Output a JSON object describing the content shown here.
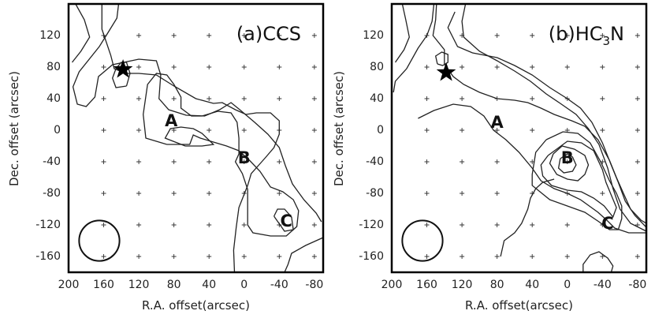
{
  "chart_data": [
    {
      "type": "contour",
      "title": "(a)CCS",
      "title_parts": [
        "(a)CCS"
      ],
      "xlabel": "R.A. offset(arcsec)",
      "ylabel": "Dec. offset (arcsec)",
      "xlim": [
        200,
        -90
      ],
      "ylim": [
        -180,
        160
      ],
      "x_ticks": [
        200,
        160,
        120,
        80,
        40,
        0,
        -40,
        -80
      ],
      "x_tick_labels": [
        "200",
        "160",
        "120",
        "80",
        "40",
        "0",
        "-40",
        "-80"
      ],
      "y_ticks": [
        120,
        80,
        40,
        0,
        -40,
        -80,
        -120,
        -160
      ],
      "y_tick_labels": [
        "120",
        "80",
        "40",
        "0",
        "-40",
        "-80",
        "-120",
        "-160"
      ],
      "star": {
        "x": 138,
        "y": 77
      },
      "beam": {
        "x": 165,
        "y": -140,
        "diameter_arcsec": 46
      },
      "peaks": [
        {
          "label": "A",
          "x": 83,
          "y": 12
        },
        {
          "label": "B",
          "x": 0,
          "y": -35
        },
        {
          "label": "C",
          "x": -48,
          "y": -115
        }
      ],
      "contours": [
        [
          [
            192,
            160
          ],
          [
            182,
            140
          ],
          [
            176,
            118
          ],
          [
            186,
            100
          ],
          [
            196,
            86
          ]
        ],
        [
          [
            143,
            160
          ],
          [
            145,
            142
          ],
          [
            156,
            122
          ],
          [
            165,
            106
          ],
          [
            188,
            74
          ],
          [
            195,
            55
          ],
          [
            190,
            33
          ],
          [
            180,
            30
          ],
          [
            170,
            42
          ],
          [
            166,
            68
          ],
          [
            150,
            83
          ],
          [
            120,
            90
          ],
          [
            100,
            88
          ],
          [
            95,
            70
          ],
          [
            97,
            40
          ],
          [
            86,
            26
          ],
          [
            66,
            19
          ],
          [
            45,
            18
          ],
          [
            28,
            26
          ],
          [
            15,
            35
          ],
          [
            5,
            26
          ],
          [
            -12,
            10
          ],
          [
            -27,
            -5
          ],
          [
            -40,
            -22
          ],
          [
            -47,
            -45
          ],
          [
            -55,
            -68
          ],
          [
            -68,
            -88
          ],
          [
            -82,
            -105
          ],
          [
            -88,
            -116
          ]
        ],
        [
          [
            -90,
            -136
          ],
          [
            -70,
            -146
          ],
          [
            -54,
            -156
          ],
          [
            -50,
            -170
          ],
          [
            -46,
            -180
          ]
        ],
        [
          [
            11,
            -180
          ],
          [
            12,
            -152
          ],
          [
            9,
            -123
          ],
          [
            6,
            -98
          ],
          [
            -4,
            -70
          ],
          [
            -8,
            -55
          ],
          [
            -16,
            -45
          ],
          [
            -24,
            -35
          ],
          [
            -34,
            -22
          ],
          [
            -40,
            -5
          ],
          [
            -40,
            12
          ],
          [
            -30,
            22
          ],
          [
            -14,
            22
          ],
          [
            -2,
            20
          ],
          [
            10,
            26
          ],
          [
            25,
            35
          ],
          [
            35,
            34
          ],
          [
            55,
            40
          ],
          [
            80,
            56
          ],
          [
            100,
            70
          ],
          [
            120,
            72
          ],
          [
            135,
            72
          ],
          [
            148,
            78
          ],
          [
            152,
            95
          ],
          [
            162,
            128
          ],
          [
            162,
            160
          ]
        ],
        [
          [
            88,
            -18
          ],
          [
            112,
            -10
          ],
          [
            115,
            20
          ],
          [
            110,
            58
          ],
          [
            100,
            72
          ],
          [
            88,
            70
          ],
          [
            80,
            58
          ],
          [
            72,
            42
          ],
          [
            72,
            28
          ],
          [
            60,
            18
          ],
          [
            48,
            18
          ],
          [
            30,
            24
          ],
          [
            15,
            22
          ],
          [
            8,
            10
          ],
          [
            6,
            -10
          ],
          [
            6,
            -30
          ],
          [
            10,
            -40
          ],
          [
            2,
            -55
          ],
          [
            -4,
            -75
          ],
          [
            -4,
            -100
          ],
          [
            -4,
            -120
          ],
          [
            -10,
            -130
          ],
          [
            -30,
            -134
          ],
          [
            -48,
            -134
          ],
          [
            -60,
            -122
          ],
          [
            -62,
            -102
          ],
          [
            -56,
            -88
          ],
          [
            -44,
            -78
          ],
          [
            -30,
            -72
          ],
          [
            -18,
            -52
          ],
          [
            -6,
            -38
          ],
          [
            6,
            -26
          ],
          [
            20,
            -20
          ],
          [
            38,
            -14
          ],
          [
            50,
            -10
          ],
          [
            58,
            -6
          ],
          [
            62,
            -18
          ],
          [
            88,
            -18
          ]
        ],
        [
          [
            134,
            56
          ],
          [
            146,
            54
          ],
          [
            150,
            66
          ],
          [
            146,
            78
          ],
          [
            140,
            86
          ],
          [
            134,
            86
          ],
          [
            130,
            72
          ],
          [
            134,
            56
          ]
        ],
        [
          [
            67,
            -20
          ],
          [
            48,
            -20
          ],
          [
            35,
            -18
          ],
          [
            48,
            -4
          ],
          [
            58,
            2
          ],
          [
            72,
            4
          ],
          [
            84,
            2
          ],
          [
            90,
            -10
          ],
          [
            67,
            -20
          ]
        ],
        [
          [
            -34,
            -109
          ],
          [
            -46,
            -128
          ],
          [
            -56,
            -126
          ],
          [
            -54,
            -110
          ],
          [
            -46,
            -100
          ],
          [
            -38,
            -100
          ],
          [
            -34,
            -109
          ]
        ]
      ]
    },
    {
      "type": "contour",
      "title": "(b)HC3N",
      "title_parts": [
        "(b)HC",
        "3",
        "N"
      ],
      "xlabel": "R.A. offset(arcsec)",
      "ylabel": "Dec. offset (arcsec)",
      "xlim": [
        200,
        -90
      ],
      "ylim": [
        -180,
        160
      ],
      "x_ticks": [
        200,
        160,
        120,
        80,
        40,
        0,
        -40,
        -80
      ],
      "x_tick_labels": [
        "200",
        "160",
        "120",
        "80",
        "40",
        "0",
        "-40",
        "-80"
      ],
      "y_ticks": [
        120,
        80,
        40,
        0,
        -40,
        -80,
        -120,
        -160
      ],
      "y_tick_labels": [
        "120",
        "80",
        "40",
        "0",
        "-40",
        "-80",
        "-120",
        "-160"
      ],
      "star": {
        "x": 138,
        "y": 73
      },
      "beam": {
        "x": 165,
        "y": -140,
        "diameter_arcsec": 46
      },
      "peaks": [
        {
          "label": "A",
          "x": 80,
          "y": 10
        },
        {
          "label": "B",
          "x": 0,
          "y": -35
        },
        {
          "label": "C",
          "x": -46,
          "y": -118
        }
      ],
      "contours": [
        [
          [
            188,
            160
          ],
          [
            184,
            140
          ],
          [
            180,
            118
          ],
          [
            186,
            102
          ],
          [
            196,
            86
          ]
        ],
        [
          [
            152,
            160
          ],
          [
            154,
            138
          ],
          [
            160,
            120
          ],
          [
            170,
            104
          ],
          [
            183,
            78
          ],
          [
            196,
            62
          ],
          [
            198,
            48
          ]
        ],
        [
          [
            149,
            160
          ],
          [
            150,
            140
          ],
          [
            153,
            120
          ],
          [
            140,
            102
          ],
          [
            140,
            84
          ],
          [
            130,
            68
          ],
          [
            118,
            58
          ],
          [
            100,
            48
          ],
          [
            80,
            40
          ],
          [
            60,
            38
          ],
          [
            45,
            35
          ],
          [
            30,
            28
          ],
          [
            15,
            20
          ],
          [
            -5,
            12
          ],
          [
            -20,
            5
          ],
          [
            -35,
            -12
          ],
          [
            -48,
            -38
          ],
          [
            -56,
            -60
          ],
          [
            -64,
            -80
          ],
          [
            -72,
            -100
          ],
          [
            -84,
            -114
          ],
          [
            -90,
            -118
          ]
        ],
        [
          [
            128,
            150
          ],
          [
            136,
            130
          ],
          [
            125,
            106
          ],
          [
            108,
            98
          ],
          [
            80,
            92
          ],
          [
            60,
            82
          ],
          [
            40,
            70
          ],
          [
            20,
            54
          ],
          [
            0,
            40
          ],
          [
            -15,
            28
          ],
          [
            -28,
            10
          ],
          [
            -40,
            -16
          ],
          [
            -50,
            -44
          ],
          [
            -58,
            -66
          ],
          [
            -66,
            -90
          ],
          [
            -77,
            -108
          ],
          [
            -90,
            -123
          ]
        ],
        [
          [
            116,
            160
          ],
          [
            120,
            138
          ],
          [
            118,
            118
          ],
          [
            100,
            100
          ],
          [
            80,
            88
          ],
          [
            60,
            75
          ],
          [
            42,
            62
          ],
          [
            24,
            46
          ],
          [
            8,
            34
          ],
          [
            -10,
            20
          ],
          [
            -24,
            2
          ],
          [
            -36,
            -18
          ],
          [
            -46,
            -48
          ],
          [
            -52,
            -74
          ],
          [
            -60,
            -100
          ],
          [
            -72,
            -118
          ],
          [
            -90,
            -128
          ]
        ],
        [
          [
            170,
            15
          ],
          [
            152,
            25
          ],
          [
            130,
            33
          ],
          [
            110,
            30
          ],
          [
            95,
            18
          ],
          [
            84,
            0
          ],
          [
            70,
            -12
          ],
          [
            55,
            -28
          ],
          [
            40,
            -48
          ],
          [
            30,
            -64
          ],
          [
            15,
            -74
          ],
          [
            0,
            -80
          ],
          [
            -15,
            -88
          ],
          [
            -25,
            -96
          ],
          [
            -35,
            -104
          ],
          [
            -45,
            -114
          ],
          [
            -54,
            -124
          ],
          [
            -70,
            -130
          ],
          [
            -90,
            -130
          ]
        ],
        [
          [
            76,
            -160
          ],
          [
            72,
            -140
          ],
          [
            60,
            -130
          ],
          [
            52,
            -118
          ],
          [
            45,
            -100
          ],
          [
            42,
            -86
          ],
          [
            36,
            -74
          ],
          [
            28,
            -66
          ],
          [
            15,
            -62
          ]
        ],
        [
          [
            24,
            -12
          ],
          [
            36,
            -28
          ],
          [
            40,
            -56
          ],
          [
            40,
            -70
          ],
          [
            20,
            -88
          ],
          [
            0,
            -96
          ],
          [
            -20,
            -104
          ],
          [
            -36,
            -116
          ],
          [
            -48,
            -126
          ],
          [
            -58,
            -126
          ],
          [
            -62,
            -112
          ],
          [
            -62,
            -96
          ],
          [
            -56,
            -80
          ],
          [
            -48,
            -64
          ],
          [
            -38,
            -40
          ],
          [
            -26,
            -16
          ],
          [
            -12,
            -4
          ],
          [
            5,
            -2
          ],
          [
            24,
            -12
          ]
        ],
        [
          [
            22,
            -32
          ],
          [
            30,
            -44
          ],
          [
            28,
            -58
          ],
          [
            18,
            -70
          ],
          [
            0,
            -76
          ],
          [
            -16,
            -78
          ],
          [
            -30,
            -86
          ],
          [
            -42,
            -96
          ],
          [
            -52,
            -110
          ],
          [
            -56,
            -98
          ],
          [
            -50,
            -82
          ],
          [
            -44,
            -66
          ],
          [
            -40,
            -50
          ],
          [
            -30,
            -26
          ],
          [
            -16,
            -16
          ],
          [
            0,
            -14
          ],
          [
            22,
            -32
          ]
        ],
        [
          [
            16,
            -30
          ],
          [
            20,
            -42
          ],
          [
            12,
            -56
          ],
          [
            0,
            -62
          ],
          [
            -12,
            -64
          ],
          [
            -20,
            -56
          ],
          [
            -24,
            -44
          ],
          [
            -20,
            -32
          ],
          [
            -8,
            -24
          ],
          [
            6,
            -20
          ],
          [
            16,
            -30
          ]
        ],
        [
          [
            8,
            -36
          ],
          [
            10,
            -48
          ],
          [
            4,
            -54
          ],
          [
            -6,
            -52
          ],
          [
            -10,
            -44
          ],
          [
            -6,
            -34
          ],
          [
            0,
            -30
          ],
          [
            8,
            -36
          ]
        ],
        [
          [
            148,
            84
          ],
          [
            150,
            94
          ],
          [
            143,
            99
          ],
          [
            136,
            96
          ],
          [
            136,
            86
          ],
          [
            142,
            82
          ],
          [
            148,
            84
          ]
        ],
        [
          [
            -18,
            -180
          ],
          [
            -18,
            -170
          ],
          [
            -26,
            -158
          ],
          [
            -36,
            -154
          ],
          [
            -46,
            -162
          ],
          [
            -52,
            -172
          ],
          [
            -50,
            -180
          ]
        ]
      ]
    }
  ]
}
